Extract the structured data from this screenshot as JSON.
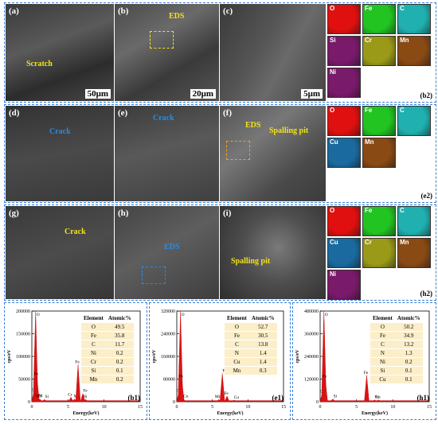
{
  "rows": [
    {
      "panels": [
        {
          "label": "(a)",
          "scale": "50μm",
          "annotation": "Scratch",
          "ann_color": "yellow"
        },
        {
          "label": "(b)",
          "scale": "20μm",
          "annotation": "EDS",
          "ann_color": "yellow"
        },
        {
          "label": "(c)",
          "scale": "5μm",
          "annotation": "",
          "ann_color": ""
        }
      ],
      "maps": {
        "tag": "(b2)",
        "elements": [
          "O",
          "Fe",
          "C",
          "Si",
          "Cr",
          "Mn",
          "Ni"
        ]
      }
    },
    {
      "panels": [
        {
          "label": "(d)",
          "scale": "",
          "annotation": "Crack",
          "ann_color": "blue"
        },
        {
          "label": "(e)",
          "scale": "",
          "annotation": "Crack",
          "ann_color": "blue"
        },
        {
          "label": "(f)",
          "scale": "",
          "annotation": "EDS",
          "annotation2": "Spalling pit",
          "ann_color": "yellow"
        }
      ],
      "maps": {
        "tag": "(e2)",
        "elements": [
          "O",
          "Fe",
          "C",
          "Cu",
          "Mn"
        ]
      }
    },
    {
      "panels": [
        {
          "label": "(g)",
          "scale": "",
          "annotation": "Crack",
          "ann_color": "yellow"
        },
        {
          "label": "(h)",
          "scale": "",
          "annotation": "EDS",
          "ann_color": "blue"
        },
        {
          "label": "(i)",
          "scale": "",
          "annotation": "Spalling pit",
          "ann_color": "yellow"
        }
      ],
      "maps": {
        "tag": "(h2)",
        "elements": [
          "O",
          "Fe",
          "C",
          "Cu",
          "Cr",
          "Mn",
          "Ni"
        ]
      }
    }
  ],
  "map_colors": {
    "O": "#e01010",
    "Fe": "#22c422",
    "C": "#20b0b0",
    "Si": "#7a1a6a",
    "Cr": "#9a9a18",
    "Mn": "#8a4a14",
    "Ni": "#7a1a6a",
    "Cu": "#1a6aa0"
  },
  "chart_data": [
    {
      "type": "line",
      "tag": "(b1)",
      "xlabel": "Energy(keV)",
      "ylabel": "cps/eV",
      "xlim": [
        0,
        15
      ],
      "ylim": [
        0,
        200000
      ],
      "yticks": [
        "0",
        "50000",
        "100000",
        "150000",
        "200000"
      ],
      "xticks": [
        "0",
        "5",
        "10",
        "15"
      ],
      "peaks": [
        {
          "label": "C",
          "x": 0.28,
          "y": 20000
        },
        {
          "label": "O",
          "x": 0.52,
          "y": 200000
        },
        {
          "label": "Fe",
          "x": 0.7,
          "y": 55000
        },
        {
          "label": "Ni",
          "x": 0.85,
          "y": 8000
        },
        {
          "label": "Mn",
          "x": 1.1,
          "y": 6000
        },
        {
          "label": "Si",
          "x": 1.74,
          "y": 5000
        },
        {
          "label": "Cr",
          "x": 5.41,
          "y": 10000
        },
        {
          "label": "Mn",
          "x": 5.9,
          "y": 6000
        },
        {
          "label": "Fe",
          "x": 6.4,
          "y": 82000
        },
        {
          "label": "Fe",
          "x": 7.06,
          "y": 18000
        },
        {
          "label": "Ni",
          "x": 7.48,
          "y": 5000
        }
      ],
      "table": {
        "headers": [
          "Element",
          "Atomic%"
        ],
        "rows": [
          [
            "O",
            "49.5"
          ],
          [
            "Fe",
            "35.8"
          ],
          [
            "C",
            "11.7"
          ],
          [
            "Ni",
            "0.2"
          ],
          [
            "Cr",
            "0.2"
          ],
          [
            "Si",
            "0.1"
          ],
          [
            "Mn",
            "0.2"
          ]
        ]
      }
    },
    {
      "type": "line",
      "tag": "(e1)",
      "xlabel": "Energy(keV)",
      "ylabel": "cps/eV",
      "xlim": [
        0,
        15
      ],
      "ylim": [
        0,
        320000
      ],
      "yticks": [
        "0",
        "80000",
        "160000",
        "240000",
        "320000"
      ],
      "xticks": [
        "0",
        "5",
        "10",
        "15"
      ],
      "peaks": [
        {
          "label": "C",
          "x": 0.28,
          "y": 30000
        },
        {
          "label": "O",
          "x": 0.52,
          "y": 320000
        },
        {
          "label": "Fe",
          "x": 0.7,
          "y": 80000
        },
        {
          "label": "Cu",
          "x": 0.93,
          "y": 10000
        },
        {
          "label": "Mn",
          "x": 5.9,
          "y": 8000
        },
        {
          "label": "Fe",
          "x": 6.4,
          "y": 100000
        },
        {
          "label": "Fe",
          "x": 7.06,
          "y": 20000
        },
        {
          "label": "Cu",
          "x": 8.04,
          "y": 6000
        }
      ],
      "table": {
        "headers": [
          "Element",
          "Atomic%"
        ],
        "rows": [
          [
            "O",
            "52.7"
          ],
          [
            "Fe",
            "30.5"
          ],
          [
            "C",
            "13.8"
          ],
          [
            "N",
            "1.4"
          ],
          [
            "Cu",
            "1.4"
          ],
          [
            "Mn",
            "0.3"
          ]
        ]
      }
    },
    {
      "type": "line",
      "tag": "(h1)",
      "xlabel": "Energy(keV)",
      "ylabel": "cps/eV",
      "xlim": [
        0,
        15
      ],
      "ylim": [
        0,
        480000
      ],
      "yticks": [
        "0",
        "120000",
        "240000",
        "360000",
        "480000"
      ],
      "xticks": [
        "0",
        "5",
        "10",
        "15"
      ],
      "peaks": [
        {
          "label": "C",
          "x": 0.28,
          "y": 40000
        },
        {
          "label": "O",
          "x": 0.52,
          "y": 480000
        },
        {
          "label": "Fe",
          "x": 0.7,
          "y": 120000
        },
        {
          "label": "Si",
          "x": 1.74,
          "y": 15000
        },
        {
          "label": "Fe",
          "x": 6.4,
          "y": 140000
        },
        {
          "label": "Ni",
          "x": 7.48,
          "y": 10000
        },
        {
          "label": "Cu",
          "x": 8.04,
          "y": 10000
        }
      ],
      "table": {
        "headers": [
          "Element",
          "Atomic%"
        ],
        "rows": [
          [
            "O",
            "50.2"
          ],
          [
            "Fe",
            "34.9"
          ],
          [
            "C",
            "13.2"
          ],
          [
            "N",
            "1.3"
          ],
          [
            "Ni",
            "0.2"
          ],
          [
            "Si",
            "0.1"
          ],
          [
            "Cu",
            "0.1"
          ]
        ]
      }
    }
  ]
}
